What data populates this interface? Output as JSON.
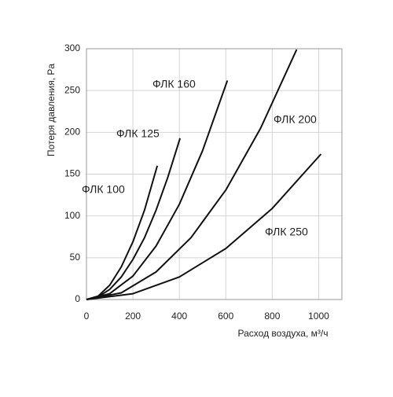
{
  "chart_data": {
    "type": "line",
    "x_label": "Расход воздуха, м³/ч",
    "y_label": "Потеря давления, Pa",
    "xlim": [
      0,
      1100
    ],
    "ylim": [
      0,
      300
    ],
    "xticks": [
      0,
      200,
      400,
      600,
      800,
      1000
    ],
    "yticks": [
      0,
      50,
      100,
      150,
      200,
      250,
      300
    ],
    "grid": true,
    "series": [
      {
        "name": "ФЛК 100",
        "color": "#111111",
        "x": [
          0,
          50,
          100,
          150,
          200,
          250,
          305
        ],
        "values": [
          0,
          4,
          17,
          39,
          69,
          107,
          160
        ]
      },
      {
        "name": "ФЛК 125",
        "color": "#111111",
        "x": [
          0,
          50,
          100,
          150,
          200,
          250,
          300,
          350,
          403
        ],
        "values": [
          0,
          3,
          12,
          27,
          48,
          74,
          107,
          146,
          193
        ]
      },
      {
        "name": "ФЛК 160",
        "color": "#111111",
        "x": [
          0,
          100,
          200,
          300,
          400,
          500,
          607
        ],
        "values": [
          0,
          7,
          28,
          64,
          114,
          178,
          262
        ]
      },
      {
        "name": "ФЛК 200",
        "color": "#111111",
        "x": [
          0,
          150,
          300,
          450,
          600,
          750,
          905
        ],
        "values": [
          0,
          8,
          33,
          74,
          131,
          205,
          299
        ]
      },
      {
        "name": "ФЛК 250",
        "color": "#111111",
        "x": [
          0,
          200,
          400,
          600,
          800,
          1010
        ],
        "values": [
          0,
          7,
          27,
          61,
          109,
          174
        ]
      }
    ]
  }
}
